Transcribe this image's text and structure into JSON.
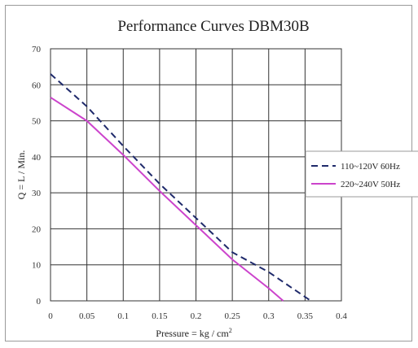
{
  "chart_data": {
    "type": "line",
    "title": "Performance  Curves  DBM30B",
    "xlabel": "Pressure = kg / cm",
    "xlabel_superscript": "2",
    "ylabel": "Q = L / Min.",
    "xlim": [
      0,
      0.4
    ],
    "ylim": [
      0,
      70
    ],
    "x_ticks": [
      "0",
      "0.05",
      "0.1",
      "0.15",
      "0.2",
      "0.25",
      "0.3",
      "0.35",
      "0.4"
    ],
    "y_ticks": [
      "0",
      "10",
      "20",
      "30",
      "40",
      "50",
      "60",
      "70"
    ],
    "grid": true,
    "legend_position": "right",
    "series": [
      {
        "name": "110~120V 60Hz",
        "color": "#1f2a6b",
        "style": "dashed",
        "x": [
          0,
          0.05,
          0.1,
          0.15,
          0.2,
          0.25,
          0.3,
          0.358
        ],
        "y": [
          63,
          54,
          43,
          32.5,
          23,
          13.5,
          8,
          0
        ]
      },
      {
        "name": "220~240V 50Hz",
        "color": "#cc44cc",
        "style": "solid",
        "x": [
          0,
          0.05,
          0.1,
          0.15,
          0.2,
          0.25,
          0.3,
          0.32
        ],
        "y": [
          56.5,
          50,
          40.5,
          30.5,
          21,
          11.5,
          3.5,
          0
        ]
      }
    ]
  }
}
